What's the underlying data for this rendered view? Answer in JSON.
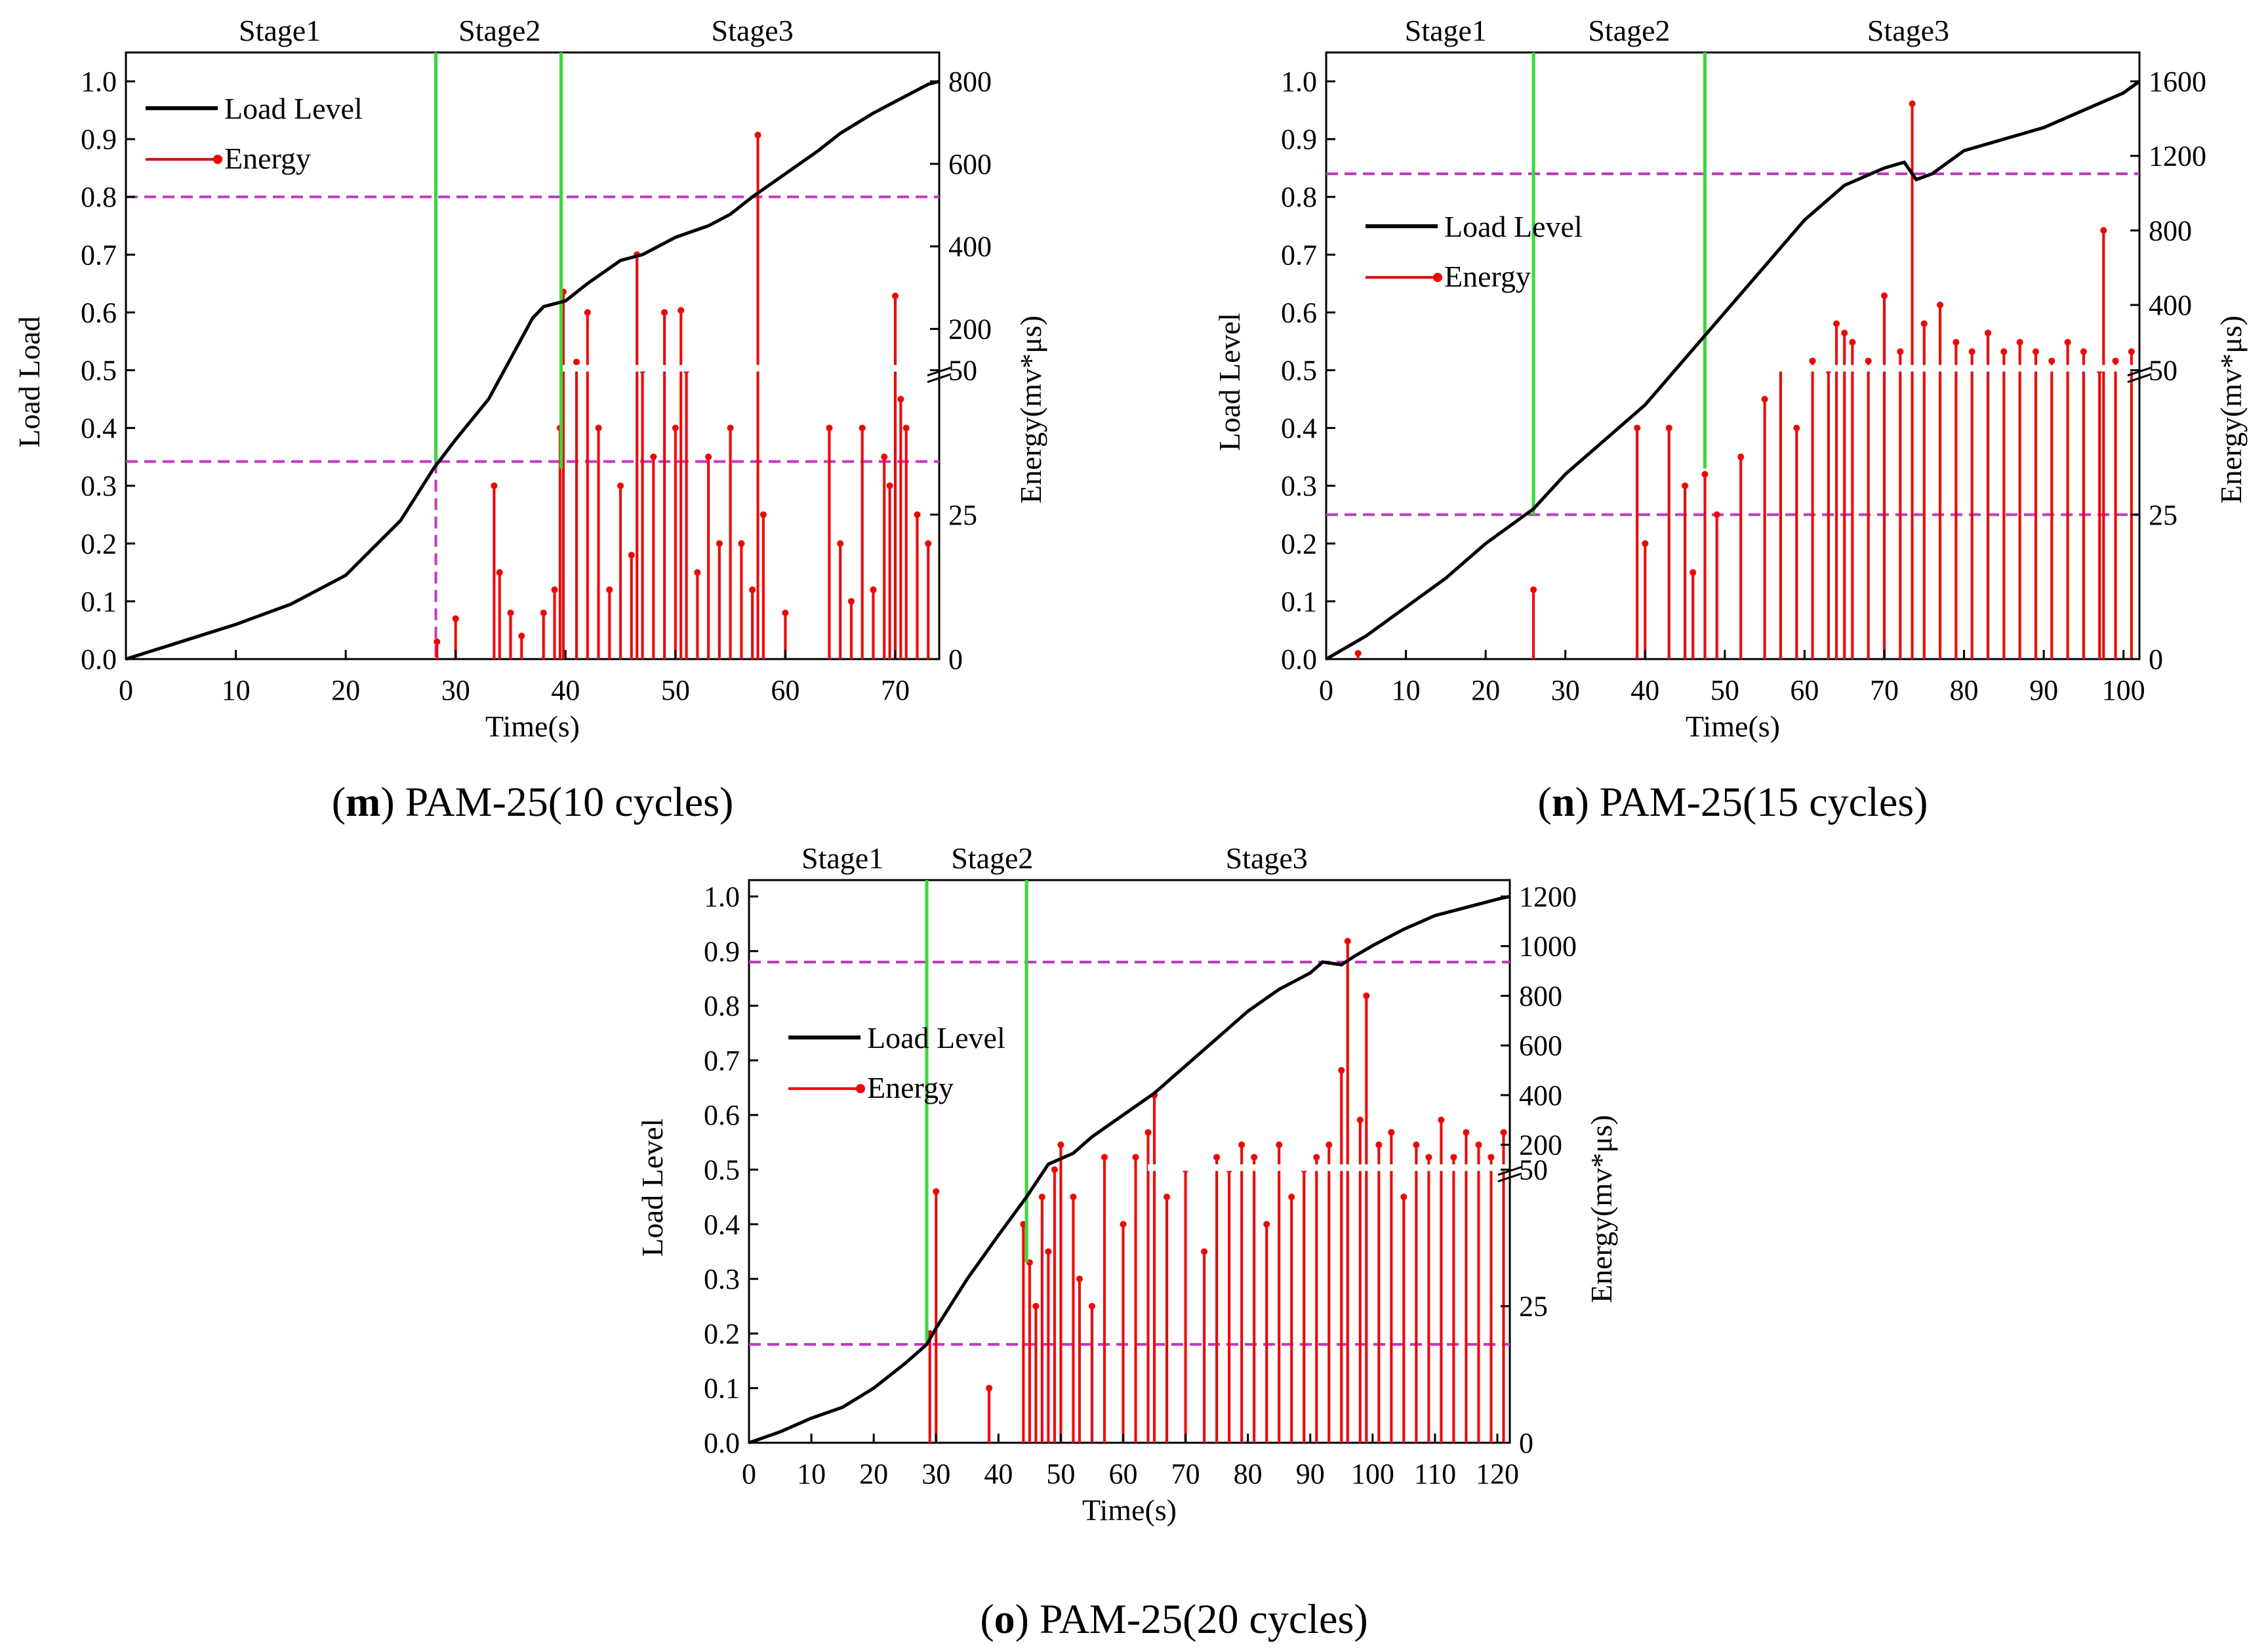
{
  "chart_data": [
    {
      "id": "m",
      "type": "line+stem",
      "caption_letter": "m",
      "caption_text": "PAM-25(10 cycles)",
      "xlabel": "Time(s)",
      "ylabel": "Load Load",
      "y2label": "Energy(mv*μs)",
      "xlim": [
        0,
        74
      ],
      "ylim": [
        0,
        1.05
      ],
      "xticks": [
        0,
        10,
        20,
        30,
        40,
        50,
        60,
        70
      ],
      "yticks": [
        "0.0",
        "0.1",
        "0.2",
        "0.3",
        "0.4",
        "0.5",
        "0.6",
        "0.7",
        "0.8",
        "0.9",
        "1.0"
      ],
      "y2ticks_lower": [
        0,
        25,
        50
      ],
      "y2ticks_upper": [
        200,
        400,
        600,
        800
      ],
      "energy_break": {
        "lower_max": 50,
        "upper_min": 100,
        "upper_max": 800
      },
      "legend": {
        "line": "Load Level",
        "energy": "Energy"
      },
      "legend_position": "top-left",
      "stages": [
        {
          "label": "Stage1",
          "x": 14
        },
        {
          "label": "Stage2",
          "x": 34
        },
        {
          "label": "Stage3",
          "x": 57
        }
      ],
      "stage_boundaries": [
        28.2,
        39.6
      ],
      "hlines": [
        0.8,
        0.342
      ],
      "vline_dashed": {
        "x": 28.2,
        "y": 0.342
      },
      "load_level": {
        "x": [
          0,
          5,
          10,
          15,
          20,
          25,
          28,
          30,
          33,
          35,
          37,
          38,
          39,
          40,
          42,
          45,
          47,
          50,
          53,
          55,
          57,
          60,
          63,
          65,
          68,
          70,
          72,
          73,
          74
        ],
        "y": [
          0,
          0.03,
          0.06,
          0.095,
          0.145,
          0.24,
          0.33,
          0.38,
          0.45,
          0.52,
          0.59,
          0.61,
          0.615,
          0.62,
          0.65,
          0.69,
          0.7,
          0.73,
          0.75,
          0.77,
          0.8,
          0.84,
          0.88,
          0.91,
          0.945,
          0.965,
          0.985,
          0.995,
          1.0
        ]
      },
      "energy": {
        "x": [
          28.3,
          30,
          33.5,
          34,
          35,
          36,
          38,
          39,
          39.5,
          39.8,
          41,
          42,
          43,
          44,
          45,
          46,
          46.5,
          47,
          48,
          49,
          50,
          50.5,
          51,
          52,
          53,
          54,
          55,
          56,
          57,
          57.5,
          58,
          60,
          64,
          65,
          66,
          67,
          68,
          69,
          69.5,
          70,
          70.5,
          71,
          72,
          73
        ],
        "y": [
          3,
          7,
          30,
          15,
          8,
          4,
          8,
          12,
          40,
          290,
          120,
          240,
          40,
          12,
          30,
          18,
          380,
          100,
          35,
          240,
          40,
          245,
          60,
          15,
          35,
          20,
          40,
          20,
          12,
          670,
          25,
          8,
          40,
          20,
          10,
          40,
          12,
          35,
          30,
          280,
          45,
          40,
          25,
          20
        ]
      },
      "colors": {
        "load": "#000000",
        "energy": "#ff0000",
        "stage_line": "#33dd33",
        "dashed": "#cc33cc"
      }
    },
    {
      "id": "n",
      "type": "line+stem",
      "caption_letter": "n",
      "caption_text": "PAM-25(15 cycles)",
      "xlabel": "Time(s)",
      "ylabel": "Load Level",
      "y2label": "Energy(mv*μs)",
      "xlim": [
        0,
        102
      ],
      "ylim": [
        0,
        1.05
      ],
      "xticks": [
        0,
        10,
        20,
        30,
        40,
        50,
        60,
        70,
        80,
        90,
        100
      ],
      "yticks": [
        "0.0",
        "0.1",
        "0.2",
        "0.3",
        "0.4",
        "0.5",
        "0.6",
        "0.7",
        "0.8",
        "0.9",
        "1.0"
      ],
      "y2ticks_lower": [
        0,
        25,
        50
      ],
      "y2ticks_upper": [
        400,
        800,
        1200,
        1600
      ],
      "energy_break": {
        "lower_max": 50,
        "upper_min": 50,
        "upper_max": 1600
      },
      "legend": {
        "line": "Load Level",
        "energy": "Energy"
      },
      "legend_position": "middle-left",
      "stages": [
        {
          "label": "Stage1",
          "x": 15
        },
        {
          "label": "Stage2",
          "x": 38
        },
        {
          "label": "Stage3",
          "x": 73
        }
      ],
      "stage_boundaries": [
        26,
        47.5
      ],
      "hlines": [
        0.84,
        0.25
      ],
      "vline_dashed": null,
      "load_level": {
        "x": [
          0,
          5,
          10,
          15,
          20,
          25,
          26,
          30,
          35,
          40,
          45,
          47.5,
          50,
          55,
          60,
          65,
          70,
          72.5,
          74,
          76,
          80,
          85,
          90,
          95,
          100,
          102
        ],
        "y": [
          0,
          0.04,
          0.09,
          0.14,
          0.2,
          0.25,
          0.26,
          0.32,
          0.38,
          0.44,
          0.52,
          0.56,
          0.6,
          0.68,
          0.76,
          0.82,
          0.85,
          0.86,
          0.83,
          0.84,
          0.88,
          0.9,
          0.92,
          0.95,
          0.98,
          1.0
        ]
      },
      "energy": {
        "x": [
          4,
          26,
          39,
          40,
          43,
          45,
          46,
          47.5,
          49,
          52,
          55,
          57,
          59,
          61,
          63,
          64,
          65,
          66,
          68,
          70,
          72,
          73.5,
          75,
          77,
          79,
          81,
          83,
          85,
          87,
          89,
          91,
          93,
          95,
          97,
          97.5,
          99,
          101
        ],
        "y": [
          1,
          12,
          40,
          20,
          40,
          30,
          15,
          32,
          25,
          35,
          45,
          60,
          40,
          100,
          50,
          300,
          250,
          200,
          100,
          450,
          150,
          1480,
          300,
          400,
          200,
          150,
          250,
          150,
          200,
          150,
          100,
          200,
          150,
          50,
          800,
          100,
          150
        ]
      },
      "colors": {
        "load": "#000000",
        "energy": "#ff0000",
        "stage_line": "#33dd33",
        "dashed": "#cc33cc"
      }
    },
    {
      "id": "o",
      "type": "line+stem",
      "caption_letter": "o",
      "caption_text": "PAM-25(20 cycles)",
      "xlabel": "Time(s)",
      "ylabel": "Load Level",
      "y2label": "Energy(mv*μs)",
      "xlim": [
        0,
        122
      ],
      "ylim": [
        0,
        1.03
      ],
      "xticks": [
        0,
        10,
        20,
        30,
        40,
        50,
        60,
        70,
        80,
        90,
        100,
        110,
        120
      ],
      "yticks": [
        "0.0",
        "0.1",
        "0.2",
        "0.3",
        "0.4",
        "0.5",
        "0.6",
        "0.7",
        "0.8",
        "0.9",
        "1.0"
      ],
      "y2ticks_lower": [
        0,
        25,
        50
      ],
      "y2ticks_upper": [
        200,
        400,
        600,
        800,
        1000,
        1200
      ],
      "energy_break": {
        "lower_max": 50,
        "upper_min": 100,
        "upper_max": 1200
      },
      "legend": {
        "line": "Load Level",
        "energy": "Energy"
      },
      "legend_position": "middle-left",
      "stages": [
        {
          "label": "Stage1",
          "x": 15
        },
        {
          "label": "Stage2",
          "x": 39
        },
        {
          "label": "Stage3",
          "x": 83
        }
      ],
      "stage_boundaries": [
        28.5,
        44.5
      ],
      "hlines": [
        0.88,
        0.18
      ],
      "vline_dashed": null,
      "load_level": {
        "x": [
          0,
          5,
          10,
          15,
          20,
          25,
          28.5,
          30,
          35,
          40,
          44.5,
          48,
          50,
          52,
          55,
          60,
          65,
          70,
          75,
          80,
          85,
          90,
          92,
          95,
          97,
          100,
          105,
          110,
          115,
          120,
          122
        ],
        "y": [
          0,
          0.02,
          0.045,
          0.065,
          0.1,
          0.145,
          0.18,
          0.21,
          0.3,
          0.38,
          0.45,
          0.51,
          0.52,
          0.53,
          0.56,
          0.6,
          0.64,
          0.69,
          0.74,
          0.79,
          0.83,
          0.86,
          0.88,
          0.875,
          0.89,
          0.91,
          0.94,
          0.965,
          0.98,
          0.995,
          1.0
        ]
      },
      "energy": {
        "x": [
          29,
          30,
          38.5,
          44,
          45,
          46,
          47,
          48,
          49,
          50,
          52,
          53,
          55,
          57,
          60,
          62,
          64,
          65,
          67,
          70,
          73,
          75,
          77,
          79,
          81,
          83,
          85,
          87,
          89,
          91,
          93,
          95,
          96,
          98,
          99,
          101,
          103,
          105,
          107,
          109,
          111,
          113,
          115,
          117,
          119,
          121
        ],
        "y": [
          20,
          46,
          10,
          40,
          33,
          25,
          45,
          35,
          100,
          200,
          45,
          30,
          25,
          150,
          40,
          150,
          250,
          400,
          45,
          50,
          35,
          150,
          100,
          200,
          150,
          40,
          200,
          45,
          100,
          150,
          200,
          500,
          1020,
          300,
          800,
          200,
          250,
          45,
          200,
          150,
          300,
          150,
          250,
          200,
          150,
          250
        ]
      },
      "colors": {
        "load": "#000000",
        "energy": "#ff0000",
        "stage_line": "#33dd33",
        "dashed": "#cc33cc"
      }
    }
  ]
}
